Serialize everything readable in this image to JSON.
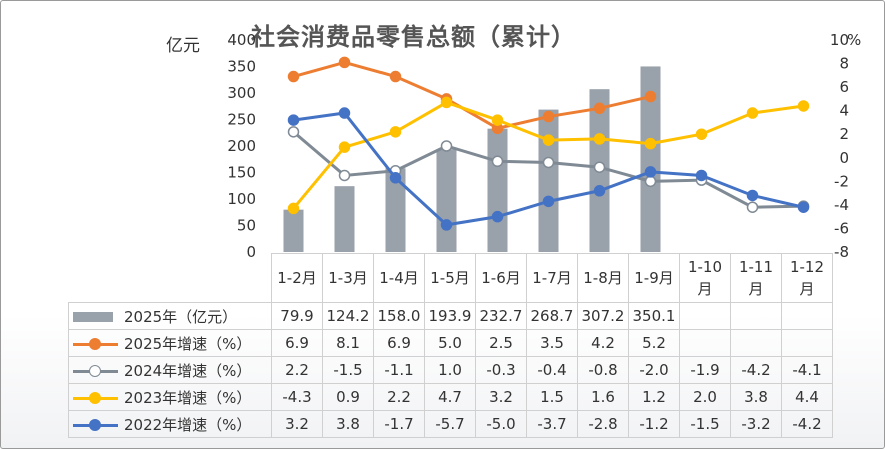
{
  "chart_data": {
    "type": "bar+line",
    "title": "社会消费品零售总额（累计）",
    "ylabel_left": "亿元",
    "ylabel_right": "%",
    "ylim_left": [
      0,
      400
    ],
    "yticks_left": [
      0,
      50,
      100,
      150,
      200,
      250,
      300,
      350,
      400
    ],
    "ylim_right": [
      -8,
      10
    ],
    "yticks_right": [
      -8,
      -6,
      -4,
      -2,
      0,
      2,
      4,
      6,
      8,
      10
    ],
    "categories": [
      "1-2月",
      "1-3月",
      "1-4月",
      "1-5月",
      "1-6月",
      "1-7月",
      "1-8月",
      "1-9月",
      "1-10月",
      "1-11月",
      "1-12月"
    ],
    "series": [
      {
        "name": "2025年（亿元）",
        "type": "bar",
        "axis": "left",
        "color": "#99a1ab",
        "values": [
          79.9,
          124.2,
          158.0,
          193.9,
          232.7,
          268.7,
          307.2,
          350.1,
          null,
          null,
          null
        ]
      },
      {
        "name": "2025年增速（%）",
        "type": "line",
        "axis": "right",
        "color": "#ed7d31",
        "marker": "filled",
        "values": [
          6.9,
          8.1,
          6.9,
          5.0,
          2.5,
          3.5,
          4.2,
          5.2,
          null,
          null,
          null
        ]
      },
      {
        "name": "2024年增速（%）",
        "type": "line",
        "axis": "right",
        "color": "#7f8a94",
        "marker": "hollow",
        "values": [
          2.2,
          -1.5,
          -1.1,
          1.0,
          -0.3,
          -0.4,
          -0.8,
          -2.0,
          -1.9,
          -4.2,
          -4.1
        ]
      },
      {
        "name": "2023年增速（%）",
        "type": "line",
        "axis": "right",
        "color": "#ffc000",
        "marker": "filled",
        "values": [
          -4.3,
          0.9,
          2.2,
          4.7,
          3.2,
          1.5,
          1.6,
          1.2,
          2.0,
          3.8,
          4.4
        ]
      },
      {
        "name": "2022年增速（%）",
        "type": "line",
        "axis": "right",
        "color": "#4472c4",
        "marker": "filled",
        "values": [
          3.2,
          3.8,
          -1.7,
          -5.7,
          -5.0,
          -3.7,
          -2.8,
          -1.2,
          -1.5,
          -3.2,
          -4.2
        ]
      }
    ]
  }
}
